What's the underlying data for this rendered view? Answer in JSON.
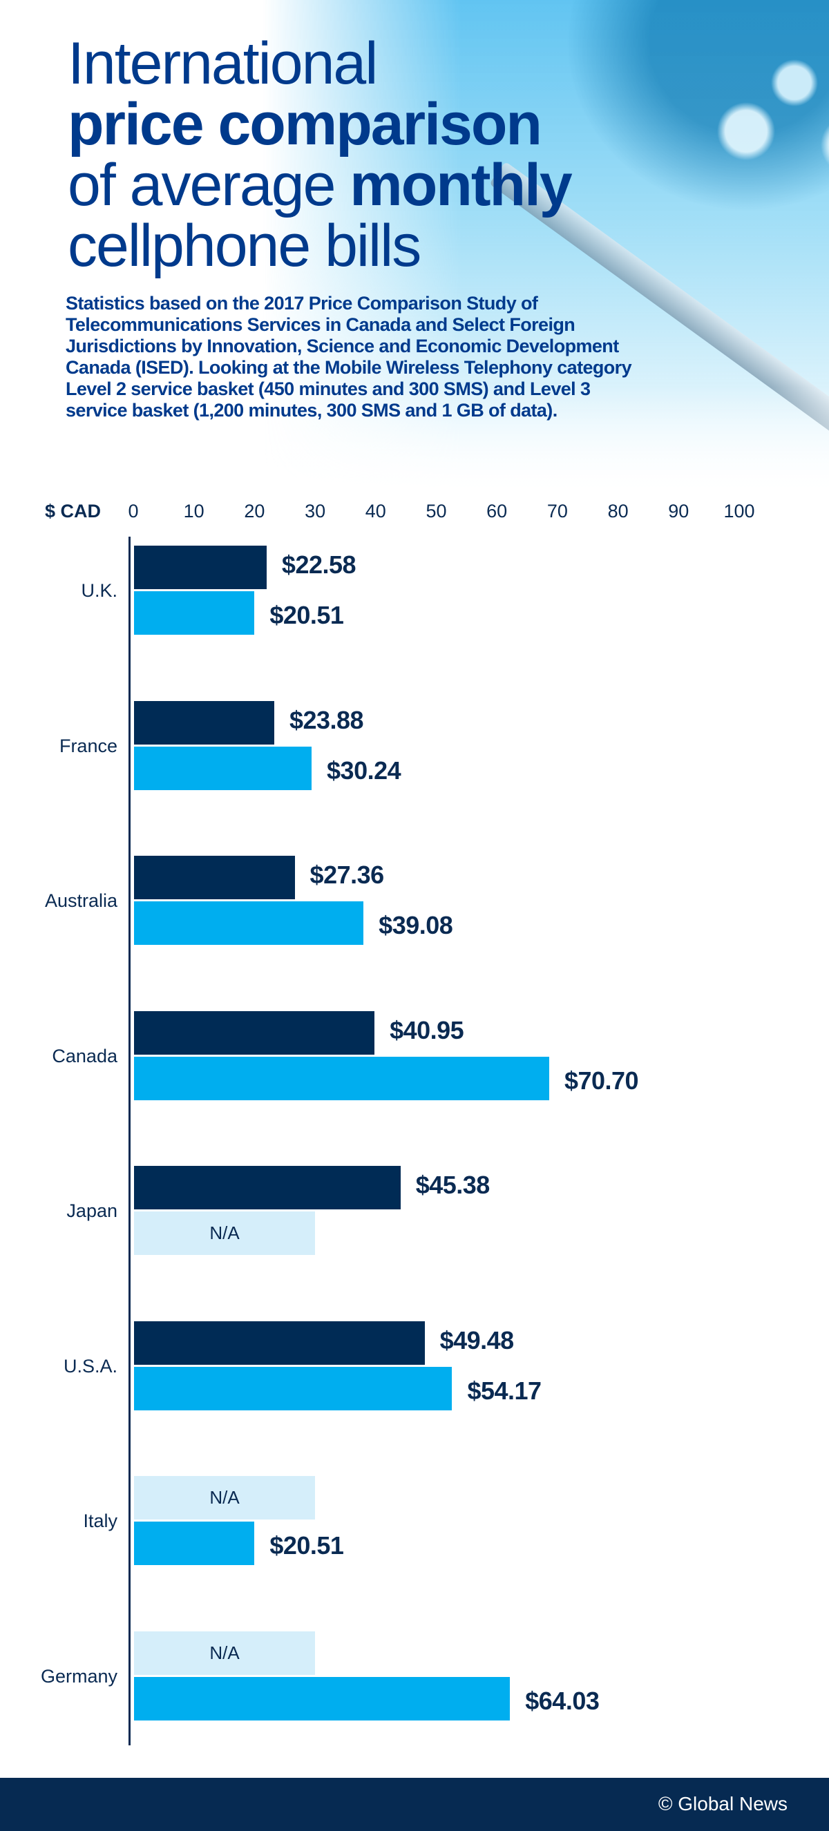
{
  "title": {
    "line1": "International",
    "line2": "price comparison",
    "line3_regular": "of average ",
    "line3_bold": "monthly",
    "line4": "cellphone bills"
  },
  "description": "Statistics based on the 2017 Price Comparison Study of Telecommunications Services in Canada and Select Foreign Jurisdictions by Innovation, Science and Economic Development Canada (ISED). Looking at the Mobile Wireless Telephony category Level 2 service basket (450 minutes and 300 SMS) and Level 3 service basket (1,200 minutes, 300 SMS and 1 GB of data).",
  "footer": "© Global News",
  "colors": {
    "title": "#003a8c",
    "dark_series": "#002b55",
    "light_series": "#00aeef",
    "na_fill": "#d5eefa",
    "footer_bg": "#062a52"
  },
  "chart_data": {
    "type": "bar",
    "orientation": "horizontal",
    "xlabel": "$ CAD",
    "xlim": [
      0,
      100
    ],
    "xticks": [
      "0",
      "10",
      "20",
      "30",
      "40",
      "50",
      "60",
      "70",
      "80",
      "90",
      "100"
    ],
    "grid": false,
    "categories": [
      "U.K.",
      "France",
      "Australia",
      "Canada",
      "Japan",
      "U.S.A.",
      "Italy",
      "Germany"
    ],
    "series": [
      {
        "color": "#002b55",
        "values": [
          22.58,
          23.88,
          27.36,
          40.95,
          45.38,
          49.48,
          null,
          null
        ],
        "labels": [
          "$22.58",
          "$23.88",
          "$27.36",
          "$40.95",
          "$45.38",
          "$49.48",
          "N/A",
          "N/A"
        ]
      },
      {
        "color": "#00aeef",
        "values": [
          20.51,
          30.24,
          39.08,
          70.7,
          null,
          54.17,
          20.51,
          64.03
        ],
        "labels": [
          "$20.51",
          "$30.24",
          "$39.08",
          "$70.70",
          "N/A",
          "$54.17",
          "$20.51",
          "$64.03"
        ]
      }
    ]
  }
}
